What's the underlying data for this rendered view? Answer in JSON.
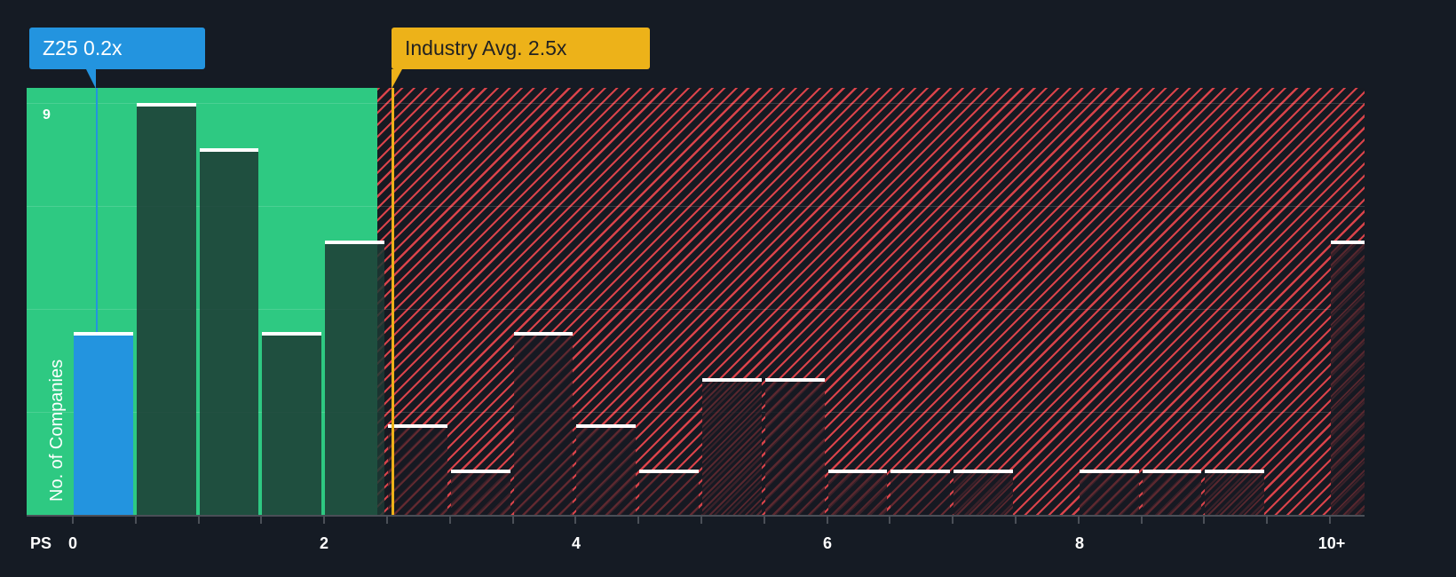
{
  "colors": {
    "background": "#151b24",
    "fair_zone": "#2ec982",
    "overvalued_hatch": "#d9434a",
    "company": "#2394df",
    "industry": "#edb219",
    "bar_cap": "#ffffff"
  },
  "company_callout": {
    "label": "Z25 0.2x",
    "ticker": "Z25",
    "value": 0.2
  },
  "industry_callout": {
    "label": "Industry Avg. 2.5x",
    "value": 2.5
  },
  "y_axis": {
    "label": "No. of Companies",
    "top_tick": "9"
  },
  "x_axis": {
    "prefix": "PS",
    "ticks": [
      "0",
      "2",
      "4",
      "6",
      "8",
      "10+"
    ]
  },
  "chart_data": {
    "type": "bar",
    "title": "",
    "xlabel": "PS",
    "ylabel": "No. of Companies",
    "ylim": [
      0,
      9.3
    ],
    "grid": true,
    "bin_width": 0.5,
    "categories": [
      "0-0.5",
      "0.5-1",
      "1-1.5",
      "1.5-2",
      "2-2.5",
      "2.5-3",
      "3-3.5",
      "3.5-4",
      "4-4.5",
      "4.5-5",
      "5-5.5",
      "5.5-6",
      "6-6.5",
      "6.5-7",
      "7-7.5",
      "7.5-8",
      "8-8.5",
      "8.5-9",
      "9-9.5",
      "9.5-10",
      "10+"
    ],
    "values": [
      4,
      9,
      8,
      4,
      6,
      2,
      1,
      4,
      2,
      1,
      3,
      3,
      1,
      1,
      1,
      0,
      1,
      1,
      1,
      0,
      6
    ],
    "highlight_index": 0,
    "annotations": [
      {
        "text": "Z25 0.2x",
        "x": 0.2
      },
      {
        "text": "Industry Avg. 2.5x",
        "x": 2.5
      }
    ],
    "zones": [
      {
        "name": "fair",
        "from": 0,
        "to": 2.4,
        "color": "#2ec982"
      },
      {
        "name": "above-average",
        "from": 2.4,
        "to": 10.5,
        "color": "#d9434a"
      }
    ],
    "x_tick_labels": [
      "0",
      "2",
      "4",
      "6",
      "8",
      "10+"
    ],
    "y_tick_labels": [
      "9"
    ]
  }
}
